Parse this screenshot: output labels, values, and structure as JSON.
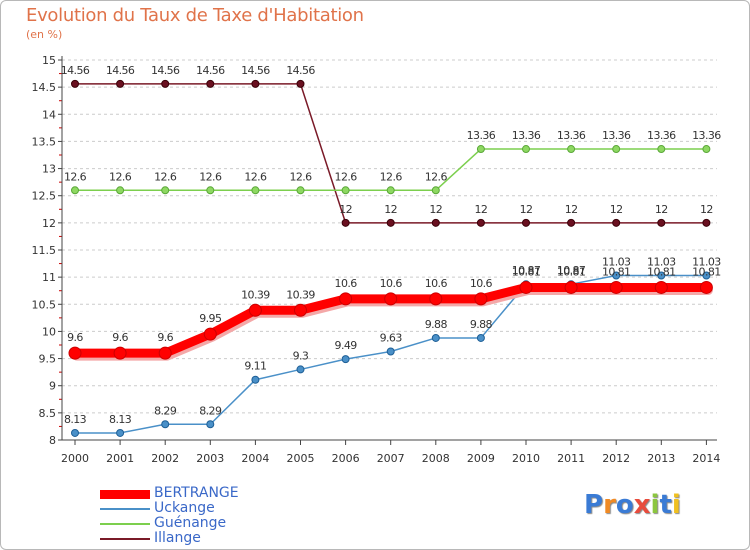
{
  "title": "Evolution du Taux de Taxe d'Habitation",
  "unit": "(en %)",
  "logo_text": "Proxiti",
  "colors": {
    "title": "#e0734a",
    "grid": "#cccccc",
    "axis": "#444444",
    "legend_text": "#3a68c8"
  },
  "chart_data": {
    "type": "line",
    "title": "Evolution du Taux de Taxe d'Habitation",
    "ylabel": "(en %)",
    "xlabel": "",
    "ylim": [
      8,
      15
    ],
    "yticks": [
      "8",
      "8.5",
      "9",
      "9.5",
      "10",
      "10.5",
      "11",
      "11.5",
      "12",
      "12.5",
      "13",
      "13.5",
      "14",
      "14.5",
      "15"
    ],
    "x": [
      "2000",
      "2001",
      "2002",
      "2003",
      "2004",
      "2005",
      "2006",
      "2007",
      "2008",
      "2009",
      "2010",
      "2011",
      "2012",
      "2013",
      "2014"
    ],
    "grid": "horizontal dashed",
    "legend_position": "bottom-left",
    "series": [
      {
        "name": "Illange",
        "color": "#7a1a28",
        "values": [
          14.56,
          14.56,
          14.56,
          14.56,
          14.56,
          14.56,
          12,
          12,
          12,
          12,
          12,
          12,
          12,
          12,
          12
        ],
        "labels": [
          "14.56",
          "14.56",
          "14.56",
          "14.56",
          "14.56",
          "14.56",
          "12",
          "12",
          "12",
          "12",
          "12",
          "12",
          "12",
          "12",
          "12"
        ]
      },
      {
        "name": "Guénange",
        "color": "#7ccf4e",
        "values": [
          12.6,
          12.6,
          12.6,
          12.6,
          12.6,
          12.6,
          12.6,
          12.6,
          12.6,
          13.36,
          13.36,
          13.36,
          13.36,
          13.36,
          13.36
        ],
        "labels": [
          "12.6",
          "12.6",
          "12.6",
          "12.6",
          "12.6",
          "12.6",
          "12.6",
          "12.6",
          "12.6",
          "13.36",
          "13.36",
          "13.36",
          "13.36",
          "13.36",
          "13.36"
        ]
      },
      {
        "name": "Uckange",
        "color": "#4a90c8",
        "values": [
          8.13,
          8.13,
          8.29,
          8.29,
          9.11,
          9.3,
          9.49,
          9.63,
          9.88,
          9.88,
          10.87,
          10.87,
          11.03,
          11.03,
          11.03
        ],
        "labels": [
          "8.13",
          "8.13",
          "8.29",
          "8.29",
          "9.11",
          "9.3",
          "9.49",
          "9.63",
          "9.88",
          "9.88",
          "10.87",
          "10.87",
          "11.03",
          "11.03",
          "11.03"
        ]
      },
      {
        "name": "BERTRANGE",
        "color": "#ff0000",
        "values": [
          9.6,
          9.6,
          9.6,
          9.95,
          10.39,
          10.39,
          10.6,
          10.6,
          10.6,
          10.6,
          10.81,
          10.81,
          10.81,
          10.81,
          10.81
        ],
        "labels": [
          "9.6",
          "9.6",
          "9.6",
          "9.95",
          "10.39",
          "10.39",
          "10.6",
          "10.6",
          "10.6",
          "10.6",
          "10.81",
          "10.81",
          "10.81",
          "10.81",
          "10.81"
        ]
      }
    ],
    "legend_order": [
      "BERTRANGE",
      "Uckange",
      "Guénange",
      "Illange"
    ]
  }
}
